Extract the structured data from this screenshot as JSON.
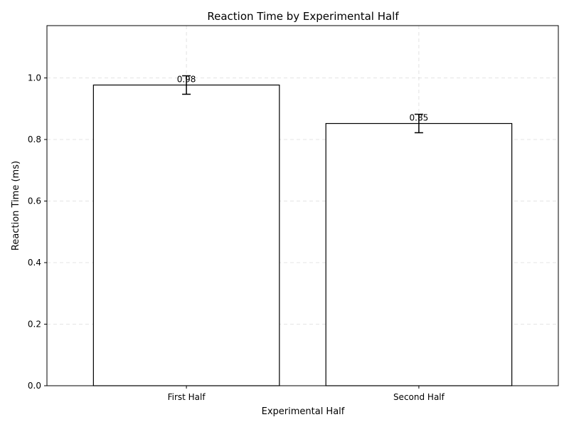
{
  "chart_data": {
    "type": "bar",
    "title": "Reaction Time by Experimental Half",
    "xlabel": "Experimental Half",
    "ylabel": "Reaction Time (ms)",
    "categories": [
      "First Half",
      "Second Half"
    ],
    "values": [
      0.977,
      0.852
    ],
    "errors": [
      0.03,
      0.03
    ],
    "data_labels": [
      "0.98",
      "0.85"
    ],
    "ylim": [
      0,
      1.17
    ],
    "yticks": [
      0.0,
      0.2,
      0.4,
      0.6,
      0.8,
      1.0
    ],
    "ytick_labels": [
      "0.0",
      "0.2",
      "0.4",
      "0.6",
      "0.8",
      "1.0"
    ],
    "grid": true,
    "colors": {
      "bar_fill": "#ffffff",
      "bar_edge": "#000000"
    }
  }
}
